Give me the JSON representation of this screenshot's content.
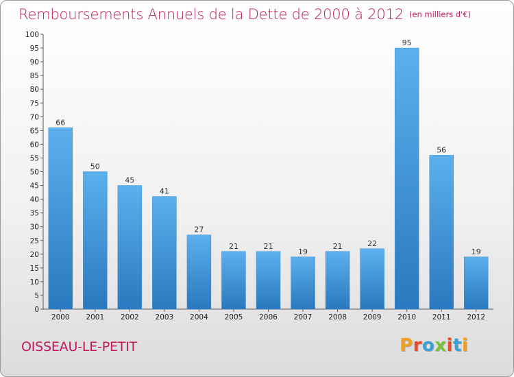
{
  "header": {
    "title": "Remboursements Annuels de la Dette de 2000 à 2012",
    "unit": "(en milliers d'€)"
  },
  "footer": {
    "city": "OISSEAU-LE-PETIT",
    "logo": "Proxiti",
    "logo_colors": [
      "#f0a020",
      "#e84a2a",
      "#3aa0d8",
      "#7cc23a",
      "#e84a2a",
      "#3aa0d8",
      "#f0a020"
    ]
  },
  "chart_data": {
    "type": "bar",
    "categories": [
      "2000",
      "2001",
      "2002",
      "2003",
      "2004",
      "2005",
      "2006",
      "2007",
      "2008",
      "2009",
      "2010",
      "2011",
      "2012"
    ],
    "values": [
      66,
      50,
      45,
      41,
      27,
      21,
      21,
      19,
      21,
      22,
      95,
      56,
      19
    ],
    "title": "Remboursements Annuels de la Dette de 2000 à 2012",
    "xlabel": "",
    "ylabel": "",
    "ylim": [
      0,
      100
    ],
    "ytick_step": 5,
    "grid": false,
    "bar_color": "#4aa3e4",
    "bar_color_dark": "#2a78bf"
  }
}
